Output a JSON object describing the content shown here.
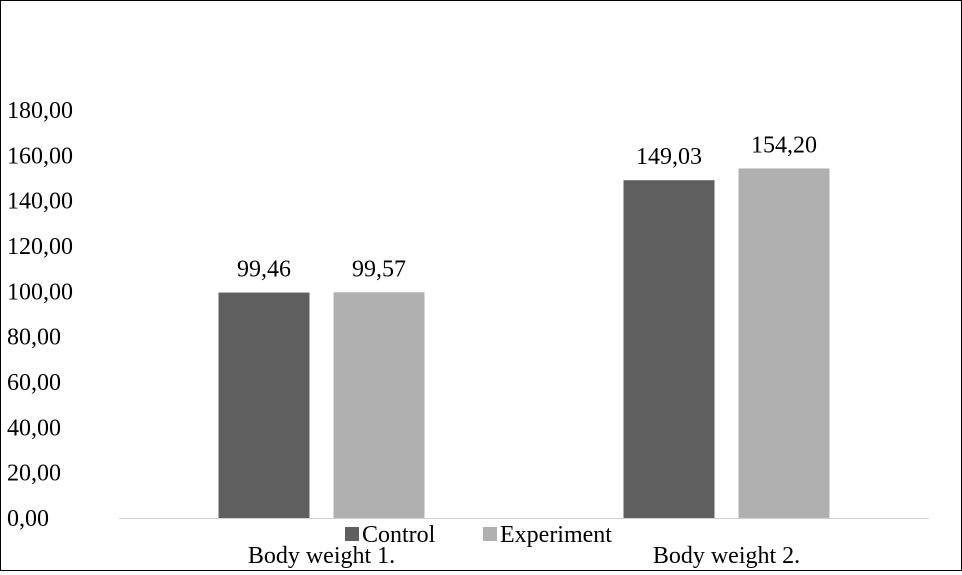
{
  "chart_data": {
    "type": "bar",
    "categories": [
      "Body weight 1.",
      "Body weight 2."
    ],
    "series": [
      {
        "name": "Control",
        "values": [
          99.46,
          149.03
        ],
        "labels": [
          "99,46",
          "149,03"
        ],
        "color": "#5f5f5f"
      },
      {
        "name": "Experiment",
        "values": [
          99.57,
          154.2
        ],
        "labels": [
          "99,57",
          "154,20"
        ],
        "color": "#b0b0b0"
      }
    ],
    "yticks": [
      "0,00",
      "20,00",
      "40,00",
      "60,00",
      "80,00",
      "100,00",
      "120,00",
      "140,00",
      "160,00",
      "180,00"
    ],
    "ylim": [
      0,
      180
    ],
    "title": "",
    "xlabel": "",
    "ylabel": "",
    "grid": false,
    "legend": "bottom",
    "axis_color": "#d0d0d0"
  }
}
